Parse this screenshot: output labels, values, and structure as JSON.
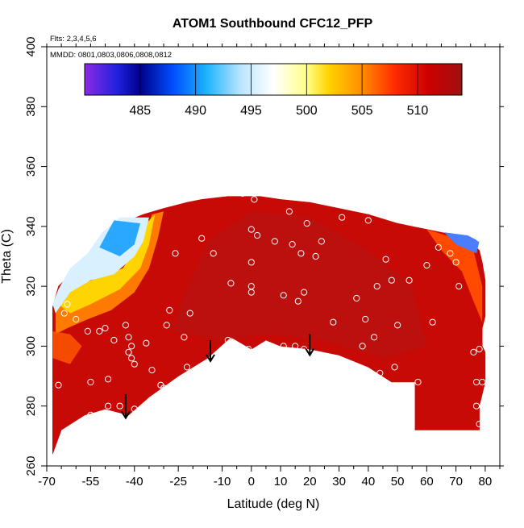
{
  "chart_data": {
    "type": "heatmap",
    "title": "ATOM1 Southbound CFC12_PFP",
    "annotations": {
      "flights": "Flts: 2,3,4,5,6",
      "dates": "MMDD: 0801,0803,0806,0808,0812"
    },
    "xlabel": "Latitude (deg N)",
    "ylabel": "Theta (C)",
    "xlim": [
      -70,
      85
    ],
    "ylim": [
      260,
      400
    ],
    "x_ticks": [
      {
        "value": -70,
        "label": "-70"
      },
      {
        "value": -55,
        "label": "-55"
      },
      {
        "value": -40,
        "label": "-40"
      },
      {
        "value": -25,
        "label": "-25"
      },
      {
        "value": -10,
        "label": "-10"
      },
      {
        "value": 0,
        "label": "0"
      },
      {
        "value": 10,
        "label": "10"
      },
      {
        "value": 20,
        "label": "20"
      },
      {
        "value": 30,
        "label": "30"
      },
      {
        "value": 40,
        "label": "40"
      },
      {
        "value": 50,
        "label": "50"
      },
      {
        "value": 60,
        "label": "60"
      },
      {
        "value": 70,
        "label": "70"
      },
      {
        "value": 80,
        "label": "80"
      }
    ],
    "x_minor_ticks": [
      -65,
      -60,
      -50,
      -45,
      -35,
      -30,
      -20,
      -15,
      -5,
      5,
      15,
      25,
      35,
      45,
      55,
      65,
      75,
      85
    ],
    "y_ticks": [
      {
        "value": 260,
        "label": "260"
      },
      {
        "value": 280,
        "label": "280"
      },
      {
        "value": 300,
        "label": "300"
      },
      {
        "value": 320,
        "label": "320"
      },
      {
        "value": 340,
        "label": "340"
      },
      {
        "value": 360,
        "label": "360"
      },
      {
        "value": 380,
        "label": "380"
      },
      {
        "value": 400,
        "label": "400"
      }
    ],
    "colorbar": {
      "range": [
        480,
        514
      ],
      "ticks": [
        {
          "value": 485,
          "label": "485"
        },
        {
          "value": 490,
          "label": "490"
        },
        {
          "value": 495,
          "label": "495"
        },
        {
          "value": 500,
          "label": "500"
        },
        {
          "value": 505,
          "label": "505"
        },
        {
          "value": 510,
          "label": "510"
        }
      ],
      "stops": [
        {
          "value": 480,
          "color": "#8a2be2"
        },
        {
          "value": 483,
          "color": "#2020e0"
        },
        {
          "value": 485,
          "color": "#00008b"
        },
        {
          "value": 488,
          "color": "#0050ff"
        },
        {
          "value": 491,
          "color": "#1eb4ff"
        },
        {
          "value": 494,
          "color": "#b8e4ff"
        },
        {
          "value": 497,
          "color": "#ffffff"
        },
        {
          "value": 500,
          "color": "#ffff88"
        },
        {
          "value": 502,
          "color": "#ffd400"
        },
        {
          "value": 505,
          "color": "#ff8c00"
        },
        {
          "value": 508,
          "color": "#ff2a00"
        },
        {
          "value": 511,
          "color": "#cc0000"
        },
        {
          "value": 514,
          "color": "#a01010"
        }
      ]
    },
    "domain_lower": [
      [
        -68,
        264
      ],
      [
        -65,
        272
      ],
      [
        -57,
        277
      ],
      [
        -50,
        279
      ],
      [
        -42,
        277
      ],
      [
        -35,
        283
      ],
      [
        -25,
        290
      ],
      [
        -15,
        296
      ],
      [
        -7,
        303
      ],
      [
        0,
        299
      ],
      [
        5,
        302
      ],
      [
        10,
        300
      ],
      [
        20,
        299
      ],
      [
        30,
        297
      ],
      [
        40,
        293
      ],
      [
        48,
        288
      ],
      [
        53,
        288
      ],
      [
        56,
        288
      ],
      [
        56,
        272
      ],
      [
        78,
        272
      ],
      [
        78,
        280
      ],
      [
        80,
        288
      ],
      [
        80,
        298
      ],
      [
        79,
        300
      ],
      [
        79,
        306
      ],
      [
        80,
        310
      ]
    ],
    "domain_upper": [
      [
        -68,
        313
      ],
      [
        -66,
        320
      ],
      [
        -60,
        326
      ],
      [
        -54,
        330
      ],
      [
        -48,
        335
      ],
      [
        -42,
        342
      ],
      [
        -37,
        344
      ],
      [
        -30,
        346
      ],
      [
        -22,
        348
      ],
      [
        -17,
        349
      ],
      [
        -8,
        350
      ],
      [
        3,
        350
      ],
      [
        10,
        349
      ],
      [
        20,
        348
      ],
      [
        30,
        346
      ],
      [
        40,
        344
      ],
      [
        50,
        341
      ],
      [
        55,
        340
      ],
      [
        60,
        339
      ],
      [
        65,
        338
      ],
      [
        70,
        337
      ],
      [
        74,
        336
      ],
      [
        78,
        332
      ],
      [
        79,
        328
      ],
      [
        80,
        322
      ],
      [
        80,
        310
      ]
    ],
    "cold_anomaly": {
      "points": [
        [
          -67,
          311
        ],
        [
          -62,
          318
        ],
        [
          -55,
          322
        ],
        [
          -47,
          324
        ],
        [
          -40,
          330
        ],
        [
          -37,
          335
        ],
        [
          -35,
          343
        ],
        [
          -45,
          343
        ],
        [
          -51,
          338
        ],
        [
          -56,
          331
        ],
        [
          -62,
          326
        ],
        [
          -66,
          319
        ],
        [
          -68,
          314
        ]
      ],
      "core": [
        [
          -52,
          333
        ],
        [
          -45,
          330
        ],
        [
          -40,
          334
        ],
        [
          -38,
          341
        ],
        [
          -47,
          342
        ]
      ]
    },
    "samples": [
      [
        -66,
        265
      ],
      [
        -66,
        287
      ],
      [
        -64,
        311
      ],
      [
        -63,
        314
      ],
      [
        -60,
        309
      ],
      [
        -56,
        305
      ],
      [
        -55,
        277
      ],
      [
        -55,
        288
      ],
      [
        -52,
        305
      ],
      [
        -50,
        306
      ],
      [
        -49,
        289
      ],
      [
        -49,
        280
      ],
      [
        -47,
        302
      ],
      [
        -45,
        280
      ],
      [
        -43,
        307
      ],
      [
        -42,
        298
      ],
      [
        -42,
        303
      ],
      [
        -41,
        300
      ],
      [
        -41,
        296
      ],
      [
        -40,
        294
      ],
      [
        -40,
        279
      ],
      [
        -36,
        301
      ],
      [
        -34,
        292
      ],
      [
        -31,
        287
      ],
      [
        -30,
        286
      ],
      [
        -29,
        307
      ],
      [
        -28,
        312
      ],
      [
        -26,
        331
      ],
      [
        -23,
        303
      ],
      [
        -22,
        293
      ],
      [
        -21,
        311
      ],
      [
        -17,
        336
      ],
      [
        -13,
        331
      ],
      [
        -8,
        302
      ],
      [
        -7,
        321
      ],
      [
        -3,
        351
      ],
      [
        -1,
        299
      ],
      [
        0,
        328
      ],
      [
        0,
        339
      ],
      [
        0,
        320
      ],
      [
        0,
        318
      ],
      [
        1,
        349
      ],
      [
        2,
        337
      ],
      [
        4,
        300
      ],
      [
        8,
        335
      ],
      [
        11,
        300
      ],
      [
        11,
        317
      ],
      [
        13,
        345
      ],
      [
        14,
        334
      ],
      [
        15,
        300
      ],
      [
        16,
        315
      ],
      [
        17,
        331
      ],
      [
        18,
        299
      ],
      [
        18,
        318
      ],
      [
        19,
        341
      ],
      [
        22,
        330
      ],
      [
        24,
        335
      ],
      [
        27,
        296
      ],
      [
        28,
        308
      ],
      [
        31,
        343
      ],
      [
        34,
        293
      ],
      [
        36,
        316
      ],
      [
        38,
        300
      ],
      [
        39,
        309
      ],
      [
        40,
        342
      ],
      [
        42,
        303
      ],
      [
        43,
        320
      ],
      [
        44,
        291
      ],
      [
        46,
        329
      ],
      [
        48,
        322
      ],
      [
        49,
        293
      ],
      [
        50,
        307
      ],
      [
        54,
        322
      ],
      [
        57,
        288
      ],
      [
        60,
        327
      ],
      [
        62,
        308
      ],
      [
        64,
        333
      ],
      [
        68,
        331
      ],
      [
        70,
        328
      ],
      [
        71,
        320
      ],
      [
        76,
        298
      ],
      [
        77,
        288
      ],
      [
        77,
        280
      ],
      [
        78,
        274
      ],
      [
        78,
        299
      ],
      [
        78,
        336
      ],
      [
        79,
        288
      ]
    ],
    "arrows": [
      {
        "latitude": -43,
        "theta_top": 284,
        "theta_tip": 276
      },
      {
        "latitude": -14,
        "theta_top": 302,
        "theta_tip": 295
      },
      {
        "latitude": 20,
        "theta_top": 304,
        "theta_tip": 297
      }
    ]
  }
}
